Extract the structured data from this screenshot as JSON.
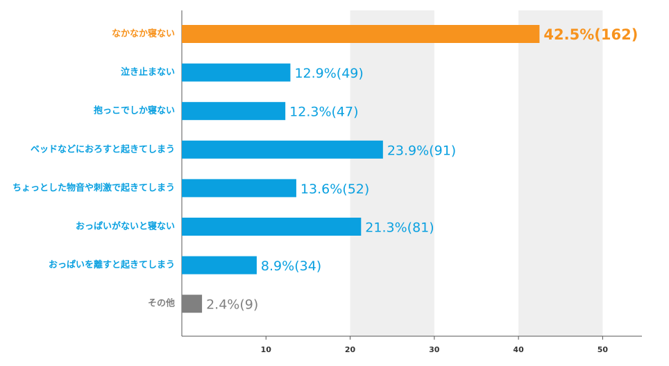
{
  "chart_data": {
    "type": "bar",
    "categories": [
      "なかなか寝ない",
      "泣き止まない",
      "抱っこでしか寝ない",
      "ベッドなどにおろすと起きてしまう",
      "ちょっとした物音や刺激で起きてしまう",
      "おっぱいがないと寝ない",
      "おっぱいを離すと起きてしまう",
      "その他"
    ],
    "values": [
      42.5,
      12.9,
      12.3,
      23.9,
      13.6,
      21.3,
      8.9,
      2.4
    ],
    "value_labels": [
      "42.5%(162)",
      "12.9%(49)",
      "12.3%(47)",
      "23.9%(91)",
      "13.6%(52)",
      "21.3%(81)",
      "8.9%(34)",
      "2.4%(9)"
    ],
    "colors": [
      "#f7931e",
      "#0aa0e0",
      "#0aa0e0",
      "#0aa0e0",
      "#0aa0e0",
      "#0aa0e0",
      "#0aa0e0",
      "#808080"
    ],
    "xlim": [
      0,
      55
    ],
    "xticks": [
      10,
      20,
      30,
      40,
      50
    ],
    "grid": true
  }
}
